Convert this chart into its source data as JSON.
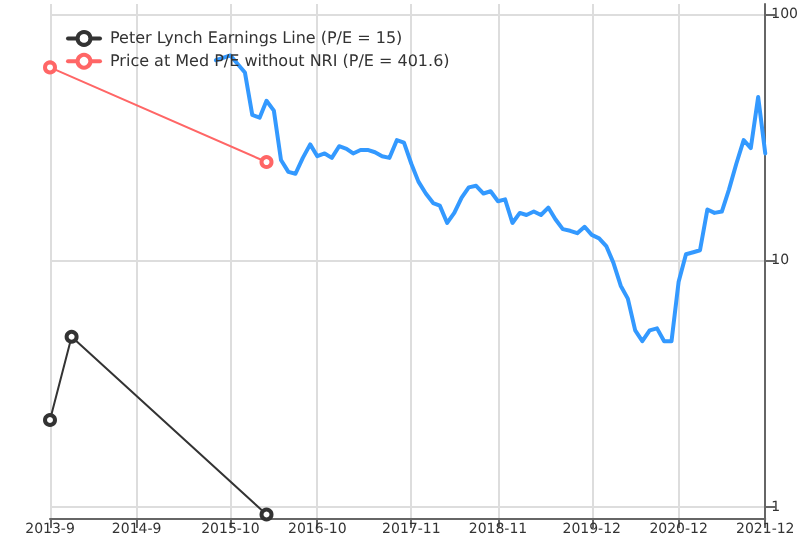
{
  "chart_data": {
    "type": "line",
    "log": "y",
    "grid": true,
    "legend": "top left",
    "line_style": "solid",
    "xlim": [
      "2013-09",
      "2021-12"
    ],
    "xticks": [
      {
        "value": "2013-09",
        "label": "2013-9"
      },
      {
        "value": "2014-09",
        "label": "2014-9"
      },
      {
        "value": "2015-10",
        "label": "2015-10"
      },
      {
        "value": "2016-10",
        "label": "2016-10"
      },
      {
        "value": "2017-11",
        "label": "2017-11"
      },
      {
        "value": "2018-11",
        "label": "2018-11"
      },
      {
        "value": "2019-12",
        "label": "2019-12"
      },
      {
        "value": "2020-12",
        "label": "2020-12"
      },
      {
        "value": "2021-12",
        "label": "2021-12"
      }
    ],
    "ylim": [
      0.9,
      110
    ],
    "yticks": [
      1,
      10,
      100
    ],
    "series": [
      {
        "color": "#3399ff",
        "marker": "none",
        "x": [
          "2015-08",
          "2015-10",
          "2015-12",
          "2016-01",
          "2016-02",
          "2016-03",
          "2016-04",
          "2016-05",
          "2016-06",
          "2016-07",
          "2016-08",
          "2016-09",
          "2016-10",
          "2016-11",
          "2016-12",
          "2017-01",
          "2017-02",
          "2017-03",
          "2017-04",
          "2017-05",
          "2017-06",
          "2017-07",
          "2017-08",
          "2017-09",
          "2017-10",
          "2017-11",
          "2017-12",
          "2018-01",
          "2018-02",
          "2018-03",
          "2018-04",
          "2018-05",
          "2018-06",
          "2018-07",
          "2018-08",
          "2018-09",
          "2018-10",
          "2018-11",
          "2018-12",
          "2019-01",
          "2019-02",
          "2019-03",
          "2019-04",
          "2019-05",
          "2019-06",
          "2019-07",
          "2019-08",
          "2019-09",
          "2019-10",
          "2019-11",
          "2019-12",
          "2020-01",
          "2020-02",
          "2020-03",
          "2020-04",
          "2020-05",
          "2020-06",
          "2020-07",
          "2020-08",
          "2020-09",
          "2020-10",
          "2020-11",
          "2020-12",
          "2021-01",
          "2021-02",
          "2021-03",
          "2021-04",
          "2021-05",
          "2021-06",
          "2021-07",
          "2021-08",
          "2021-09",
          "2021-10",
          "2021-11",
          "2021-12"
        ],
        "values": [
          65,
          68,
          58,
          39,
          38,
          44.5,
          40.6,
          25.6,
          22.9,
          22.5,
          26.1,
          29.6,
          26.5,
          27.2,
          26.1,
          29.1,
          28.4,
          27.2,
          28.1,
          28.1,
          27.5,
          26.5,
          26.1,
          30.8,
          30.1,
          24.7,
          20.9,
          18.7,
          17.1,
          16.7,
          14.2,
          15.6,
          18,
          19.8,
          20.1,
          18.7,
          19.1,
          17.4,
          17.7,
          14.2,
          15.6,
          15.3,
          15.8,
          15.3,
          16.4,
          14.7,
          13.4,
          13.2,
          12.9,
          13.7,
          12.7,
          12.3,
          11.4,
          9.8,
          7.9,
          7.0,
          5.2,
          4.7,
          5.2,
          5.3,
          4.7,
          4.7,
          8.2,
          10.6,
          10.8,
          11,
          16.1,
          15.6,
          15.8,
          19.4,
          24.7,
          30.8,
          28.6,
          46.1,
          27.2
        ]
      },
      {
        "name": "Peter Lynch Earnings Line (P/E = 15)",
        "color": "#333333",
        "marker": "circle",
        "x": [
          "2013-09",
          "2013-12",
          "2016-03"
        ],
        "values": [
          2.25,
          4.9,
          0.93
        ]
      },
      {
        "name": "Price at Med P/E without NRI (P/E = 401.6)",
        "color": "#ff6666",
        "marker": "circle",
        "x": [
          "2013-09",
          "2016-03"
        ],
        "values": [
          60.8,
          25.1
        ]
      }
    ]
  }
}
